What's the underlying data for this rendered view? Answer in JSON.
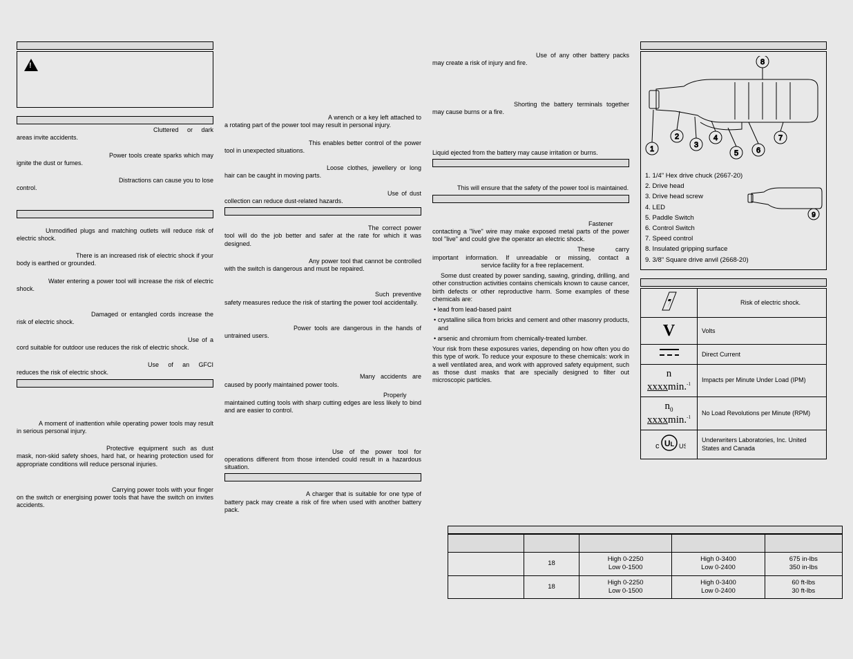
{
  "col1": {
    "p1": "Cluttered or dark areas invite accidents.",
    "p2": "Power tools create sparks which may ignite the dust or fumes.",
    "p3": "Distractions can cause you to lose control.",
    "p4": "Unmodified plugs and matching outlets will reduce risk of electric shock.",
    "p5": "There is an increased risk of electric shock if your body is earthed or grounded.",
    "p6": "Water entering a power tool will increase the risk of electric shock.",
    "p7": "Damaged or entangled cords increase the risk of electric shock.",
    "p8": "Use of a cord suitable for outdoor use reduces the risk of electric shock.",
    "p9": "Use of an GFCI reduces the risk of electric shock.",
    "p10": "A moment of inattention while operating power tools may result in serious personal injury.",
    "p11": "Protective equipment such as dust mask, non-skid safety shoes, hard hat, or hearing protection used for appropriate conditions will reduce personal injuries.",
    "p12": "Carrying power tools with your finger on the switch or energising power tools that have the switch on invites accidents."
  },
  "col2": {
    "p1": "A wrench or a key left attached to a rotating part of the power tool may result in personal injury.",
    "p2": "This enables better control of the power tool in unexpected situations.",
    "p3": "Loose clothes, jewellery or long hair can be caught in moving parts.",
    "p4": "Use of dust collection can reduce dust-related hazards.",
    "p5": "The correct power tool will do the job better and safer at the rate for which it was designed.",
    "p6": "Any power tool that cannot be controlled with the switch is dangerous and must be repaired.",
    "p7": "Such preventive safety measures reduce the risk of starting the power tool accidentally.",
    "p8": "Power tools are dangerous in the hands of untrained users.",
    "p9": "Many accidents are caused by poorly maintained power tools.",
    "p10": "Properly maintained cutting tools with sharp cutting edges are less likely to bind and are easier to control.",
    "p11": "Use of the power tool for operations different from those intended could result in a hazardous situation.",
    "p12": "A charger that is suitable for one type of battery pack may create a risk of fire when used with another battery pack."
  },
  "col3": {
    "p1": "Use of any other battery packs may create a risk of injury and fire.",
    "p2": "Shorting the battery terminals together may cause burns or a fire.",
    "p3": "Liquid ejected from the battery may cause irritation or burns.",
    "p4": "This will ensure that the safety of the power tool is maintained.",
    "p5": "Fastener contacting a \"live\" wire may make exposed metal parts of the power tool \"live\" and could give the operator an electric shock.",
    "p6a": "These carry important information. If unreadable or missing, contact a ",
    "p6b": " service facility for a free replacement.",
    "p7": "Some dust created by power sanding, sawing, grinding, drilling, and other construction activities contains chemicals known to cause cancer, birth defects or other reproductive harm. Some examples of these chemicals are:",
    "b1": "• lead from lead-based paint",
    "b2": "• crystalline silica from bricks and cement and other masonry products, and",
    "b3": "• arsenic and chromium from chemically-treated lumber.",
    "p8": "Your risk from these exposures varies, depending on how often you do this type of work. To reduce your exposure to these chemicals: work in a well ventilated area, and work with approved safety equipment, such as those dust masks that are specially designed to filter out microscopic particles."
  },
  "legend": {
    "i1": "1. 1/4\" Hex drive chuck (2667-20)",
    "i2": "2. Drive head",
    "i3": "3. Drive head screw",
    "i4": "4. LED",
    "i5": "5. Paddle Switch",
    "i6": "6. Control Switch",
    "i7": "7. Speed control",
    "i8": "8. Insulated gripping surface",
    "i9": "9. 3/8\" Square drive anvil (2668-20)"
  },
  "symbology": {
    "r1": "Risk of electric shock.",
    "r2": "Volts",
    "r3": "Direct Current",
    "r4": "Impacts per Minute Under Load (IPM)",
    "r5": "No Load Revolutions per Minute (RPM)",
    "r6": "Underwriters Laboratories, Inc. United States and Canada"
  },
  "specs": {
    "r1": {
      "c1": "",
      "c2": "18",
      "c3": "High 0-2250\nLow 0-1500",
      "c4": "High 0-3400\nLow 0-2400",
      "c5": "675 in-lbs\n350 in-lbs"
    },
    "r2": {
      "c1": "",
      "c2": "18",
      "c3": "High 0-2250\nLow 0-1500",
      "c4": "High 0-3400\nLow 0-2400",
      "c5": "60 ft-lbs\n30 ft-lbs"
    }
  }
}
